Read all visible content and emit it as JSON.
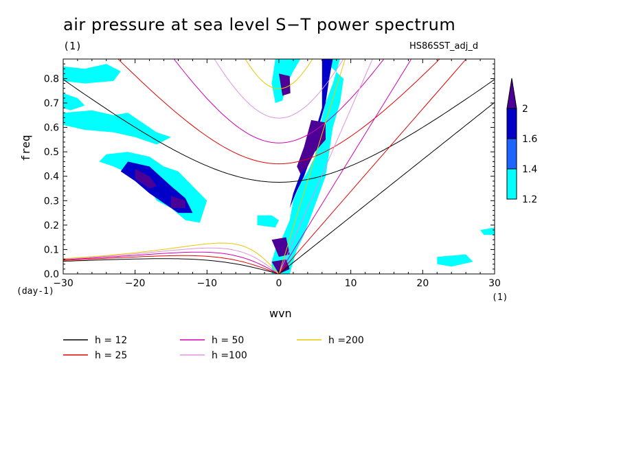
{
  "chart_data": {
    "type": "heatmap",
    "title": "air pressure at sea level S−T power spectrum",
    "subtitle_left": "(1)",
    "subtitle_right": "HS86SST_adj_d",
    "xlabel": "wvn",
    "ylabel": "freq",
    "x_unit": "(1)",
    "y_unit": "(day-1)",
    "xlim": [
      -30,
      30
    ],
    "ylim": [
      0,
      0.88
    ],
    "xticks": [
      -30,
      -20,
      -10,
      0,
      10,
      20,
      30
    ],
    "yticks": [
      0.0,
      0.1,
      0.2,
      0.3,
      0.4,
      0.5,
      0.6,
      0.7,
      0.8
    ],
    "ytick_labels": [
      "0.0",
      "0.1",
      "0.2",
      "0.3",
      "0.4",
      "0.5",
      "0.6",
      "0.7",
      "0.8"
    ],
    "colorbar": {
      "levels": [
        1.2,
        1.4,
        1.6,
        2
      ],
      "colors": [
        "#00ffff",
        "#1e64ff",
        "#0000c8",
        "#4b0096"
      ]
    },
    "dispersion_curves": [
      {
        "name": "h = 12",
        "h": 12,
        "color": "#000000"
      },
      {
        "name": "h = 25",
        "h": 25,
        "color": "#e00000"
      },
      {
        "name": "h = 50",
        "h": 50,
        "color": "#d000b0"
      },
      {
        "name": "h =100",
        "h": 100,
        "color": "#e090e0"
      },
      {
        "name": "h =200",
        "h": 200,
        "color": "#e8c800"
      }
    ],
    "regions": [
      {
        "level": 1.2,
        "polygon": [
          [
            -30,
            0.85
          ],
          [
            -27,
            0.84
          ],
          [
            -24,
            0.86
          ],
          [
            -22,
            0.83
          ],
          [
            -23,
            0.79
          ],
          [
            -27,
            0.78
          ],
          [
            -30,
            0.79
          ]
        ]
      },
      {
        "level": 1.2,
        "polygon": [
          [
            -30,
            0.74
          ],
          [
            -28,
            0.72
          ],
          [
            -27,
            0.69
          ],
          [
            -29,
            0.67
          ],
          [
            -30,
            0.68
          ]
        ]
      },
      {
        "level": 1.2,
        "polygon": [
          [
            -30,
            0.66
          ],
          [
            -26,
            0.67
          ],
          [
            -23,
            0.65
          ],
          [
            -21,
            0.66
          ],
          [
            -19,
            0.62
          ],
          [
            -17,
            0.58
          ],
          [
            -15,
            0.56
          ],
          [
            -17,
            0.53
          ],
          [
            -20,
            0.56
          ],
          [
            -23,
            0.58
          ],
          [
            -27,
            0.59
          ],
          [
            -30,
            0.61
          ]
        ]
      },
      {
        "level": 1.2,
        "polygon": [
          [
            -24,
            0.49
          ],
          [
            -21,
            0.5
          ],
          [
            -18,
            0.48
          ],
          [
            -16,
            0.44
          ],
          [
            -14,
            0.42
          ],
          [
            -12,
            0.36
          ],
          [
            -10,
            0.3
          ],
          [
            -11,
            0.21
          ],
          [
            -13,
            0.22
          ],
          [
            -15,
            0.27
          ],
          [
            -17,
            0.3
          ],
          [
            -18,
            0.35
          ],
          [
            -20,
            0.4
          ],
          [
            -23,
            0.44
          ],
          [
            -25,
            0.46
          ]
        ]
      },
      {
        "level": 1.6,
        "polygon": [
          [
            -21,
            0.46
          ],
          [
            -18,
            0.44
          ],
          [
            -15,
            0.36
          ],
          [
            -13,
            0.31
          ],
          [
            -12,
            0.25
          ],
          [
            -14,
            0.25
          ],
          [
            -16,
            0.29
          ],
          [
            -18,
            0.33
          ],
          [
            -20,
            0.38
          ],
          [
            -22,
            0.42
          ]
        ]
      },
      {
        "level": 2,
        "polygon": [
          [
            -20,
            0.43
          ],
          [
            -18,
            0.4
          ],
          [
            -17,
            0.36
          ],
          [
            -18,
            0.35
          ],
          [
            -20,
            0.39
          ]
        ]
      },
      {
        "level": 2,
        "polygon": [
          [
            -15,
            0.32
          ],
          [
            -13,
            0.3
          ],
          [
            -13,
            0.27
          ],
          [
            -15,
            0.27
          ]
        ]
      },
      {
        "level": 1.2,
        "polygon": [
          [
            -0.5,
            0.88
          ],
          [
            3,
            0.88
          ],
          [
            2,
            0.83
          ],
          [
            1,
            0.77
          ],
          [
            0.5,
            0.71
          ],
          [
            -0.5,
            0.7
          ],
          [
            -1,
            0.78
          ]
        ]
      },
      {
        "level": 2,
        "polygon": [
          [
            0,
            0.82
          ],
          [
            1.5,
            0.81
          ],
          [
            1.6,
            0.74
          ],
          [
            0.5,
            0.73
          ]
        ]
      },
      {
        "level": 1.2,
        "polygon": [
          [
            6,
            0.88
          ],
          [
            8.5,
            0.88
          ],
          [
            7.5,
            0.78
          ],
          [
            6.5,
            0.7
          ],
          [
            5.5,
            0.58
          ],
          [
            5,
            0.48
          ],
          [
            4,
            0.42
          ],
          [
            3,
            0.37
          ],
          [
            2,
            0.3
          ],
          [
            1.5,
            0.22
          ],
          [
            0.5,
            0.15
          ],
          [
            -0.5,
            0.1
          ],
          [
            -1,
            0.05
          ],
          [
            -1,
            0
          ],
          [
            1.5,
            0
          ],
          [
            2,
            0.05
          ],
          [
            2.5,
            0.1
          ],
          [
            3.5,
            0.16
          ],
          [
            4.5,
            0.24
          ],
          [
            5.5,
            0.32
          ],
          [
            6.5,
            0.4
          ],
          [
            7,
            0.5
          ],
          [
            7.5,
            0.6
          ],
          [
            8.5,
            0.7
          ],
          [
            9,
            0.8
          ]
        ]
      },
      {
        "level": 1.6,
        "polygon": [
          [
            6,
            0.88
          ],
          [
            7.5,
            0.88
          ],
          [
            7,
            0.8
          ],
          [
            6.5,
            0.7
          ],
          [
            5.5,
            0.6
          ],
          [
            4.5,
            0.48
          ],
          [
            3.5,
            0.4
          ],
          [
            2.5,
            0.34
          ],
          [
            1.5,
            0.27
          ],
          [
            2,
            0.33
          ],
          [
            3,
            0.41
          ],
          [
            4,
            0.49
          ],
          [
            5,
            0.58
          ],
          [
            6,
            0.68
          ]
        ]
      },
      {
        "level": 2,
        "polygon": [
          [
            4.5,
            0.63
          ],
          [
            6.5,
            0.62
          ],
          [
            6.5,
            0.55
          ],
          [
            5,
            0.5
          ],
          [
            4,
            0.44
          ],
          [
            3,
            0.41
          ],
          [
            2.5,
            0.44
          ],
          [
            3.5,
            0.52
          ]
        ]
      },
      {
        "level": 2,
        "polygon": [
          [
            -1,
            0.05
          ],
          [
            1,
            0.06
          ],
          [
            1.5,
            0.02
          ],
          [
            0,
            0
          ]
        ]
      },
      {
        "level": 1.2,
        "polygon": [
          [
            -3,
            0.24
          ],
          [
            -1,
            0.24
          ],
          [
            0,
            0.22
          ],
          [
            -0.5,
            0.19
          ],
          [
            -3,
            0.2
          ]
        ]
      },
      {
        "level": 2,
        "polygon": [
          [
            -1,
            0.14
          ],
          [
            1,
            0.15
          ],
          [
            1.5,
            0.08
          ],
          [
            0,
            0.07
          ]
        ]
      },
      {
        "level": 1.2,
        "polygon": [
          [
            22,
            0.07
          ],
          [
            26,
            0.08
          ],
          [
            27,
            0.05
          ],
          [
            24,
            0.03
          ],
          [
            22,
            0.04
          ]
        ]
      },
      {
        "level": 1.2,
        "polygon": [
          [
            28,
            0.18
          ],
          [
            30,
            0.19
          ],
          [
            30,
            0.16
          ],
          [
            28.5,
            0.16
          ]
        ]
      }
    ]
  },
  "legend": [
    {
      "label": "h = 12",
      "color": "#000000"
    },
    {
      "label": "h = 25",
      "color": "#e00000"
    },
    {
      "label": "h = 50",
      "color": "#d000b0"
    },
    {
      "label": "h =100",
      "color": "#e090e0"
    },
    {
      "label": "h =200",
      "color": "#e8c800"
    }
  ]
}
